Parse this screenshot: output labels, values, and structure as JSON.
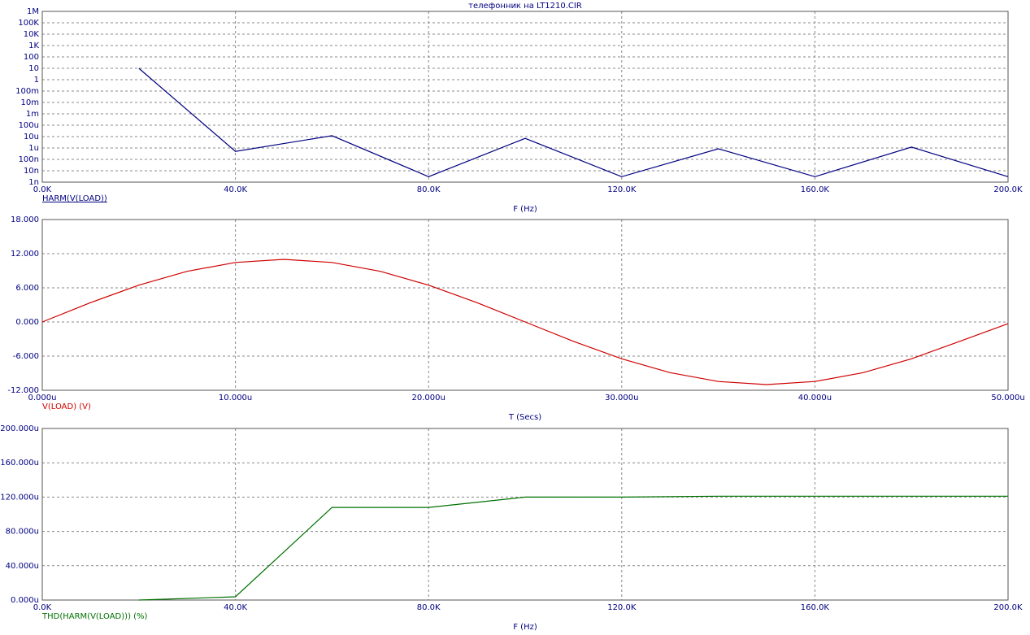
{
  "chart_data": [
    {
      "type": "line",
      "title": "телефонник на LT1210.CIR",
      "xlabel": "F (Hz)",
      "ylog": true,
      "grid": true,
      "x": [
        20000,
        40000,
        60000,
        80000,
        100000,
        120000,
        140000,
        160000,
        180000,
        200000
      ],
      "series": [
        {
          "name": "HARM(V(LOAD))",
          "color": "#000080",
          "values": [
            10,
            5e-07,
            1.2e-05,
            3e-09,
            7e-06,
            3e-09,
            8.5e-07,
            3e-09,
            1.2e-06,
            3e-09
          ]
        }
      ],
      "xlim": [
        0,
        200000
      ],
      "xticks": [
        {
          "value": 0,
          "label": "0.0K"
        },
        {
          "value": 40000,
          "label": "40.0K"
        },
        {
          "value": 80000,
          "label": "80.0K"
        },
        {
          "value": 120000,
          "label": "120.0K"
        },
        {
          "value": 160000,
          "label": "160.0K"
        },
        {
          "value": 200000,
          "label": "200.0K"
        }
      ],
      "ylim": [
        1e-09,
        1000000
      ],
      "yticks": [
        {
          "value": 1e-09,
          "label": "1n"
        },
        {
          "value": 1e-08,
          "label": "10n"
        },
        {
          "value": 1e-07,
          "label": "100n"
        },
        {
          "value": 1e-06,
          "label": "1u"
        },
        {
          "value": 1e-05,
          "label": "10u"
        },
        {
          "value": 0.0001,
          "label": "100u"
        },
        {
          "value": 0.001,
          "label": "1m"
        },
        {
          "value": 0.01,
          "label": "10m"
        },
        {
          "value": 0.1,
          "label": "100m"
        },
        1,
        10,
        100,
        {
          "value": 1000,
          "label": "1K"
        },
        {
          "value": 10000,
          "label": "10K"
        },
        {
          "value": 100000,
          "label": "100K"
        },
        {
          "value": 1000000,
          "label": "1M"
        }
      ]
    },
    {
      "type": "line",
      "xlabel": "T (Secs)",
      "grid": true,
      "x": [
        0,
        2.5e-06,
        5e-06,
        7.5e-06,
        1e-05,
        1.25e-05,
        1.5e-05,
        1.75e-05,
        2e-05,
        2.25e-05,
        2.5e-05,
        2.75e-05,
        3e-05,
        3.25e-05,
        3.5e-05,
        3.75e-05,
        4e-05,
        4.25e-05,
        4.5e-05,
        4.75e-05,
        5e-05
      ],
      "series": [
        {
          "name": "V(LOAD) (V)",
          "color": "#d00000",
          "values": [
            0,
            3.4,
            6.47,
            8.9,
            10.46,
            11,
            10.46,
            8.9,
            6.47,
            3.4,
            0,
            -3.4,
            -6.47,
            -8.9,
            -10.46,
            -11,
            -10.46,
            -8.9,
            -6.47,
            -3.4,
            -0.3
          ]
        }
      ],
      "xlim": [
        0,
        5e-05
      ],
      "xticks": [
        {
          "value": 0,
          "label": "0.000u"
        },
        {
          "value": 1e-05,
          "label": "10.000u"
        },
        {
          "value": 2e-05,
          "label": "20.000u"
        },
        {
          "value": 3e-05,
          "label": "30.000u"
        },
        {
          "value": 4e-05,
          "label": "40.000u"
        },
        {
          "value": 5e-05,
          "label": "50.000u"
        }
      ],
      "ylim": [
        -12,
        18
      ],
      "yticks": [
        {
          "value": -12,
          "label": "-12.000"
        },
        {
          "value": -6,
          "label": "-6.000"
        },
        {
          "value": 0,
          "label": "0.000"
        },
        {
          "value": 6,
          "label": "6.000"
        },
        {
          "value": 12,
          "label": "12.000"
        },
        {
          "value": 18,
          "label": "18.000"
        }
      ]
    },
    {
      "type": "line",
      "xlabel": "F (Hz)",
      "grid": true,
      "x": [
        20000,
        40000,
        60000,
        80000,
        100000,
        120000,
        140000,
        160000,
        180000,
        200000
      ],
      "series": [
        {
          "name": "THD(HARM(V(LOAD))) (%)",
          "color": "#007000",
          "values": [
            0,
            3.8e-06,
            0.000108,
            0.000108,
            0.00012,
            0.00012,
            0.000121,
            0.000121,
            0.000121,
            0.000121
          ]
        }
      ],
      "xlim": [
        0,
        200000
      ],
      "xticks": [
        {
          "value": 0,
          "label": "0.0K"
        },
        {
          "value": 40000,
          "label": "40.0K"
        },
        {
          "value": 80000,
          "label": "80.0K"
        },
        {
          "value": 120000,
          "label": "120.0K"
        },
        {
          "value": 160000,
          "label": "160.0K"
        },
        {
          "value": 200000,
          "label": "200.0K"
        }
      ],
      "ylim": [
        0,
        0.0002
      ],
      "yticks": [
        {
          "value": 0,
          "label": "0.000u"
        },
        {
          "value": 4e-05,
          "label": "40.000u"
        },
        {
          "value": 8e-05,
          "label": "80.000u"
        },
        {
          "value": 0.00012,
          "label": "120.000u"
        },
        {
          "value": 0.00016,
          "label": "160.000u"
        },
        {
          "value": 0.0002,
          "label": "200.000u"
        }
      ]
    }
  ]
}
